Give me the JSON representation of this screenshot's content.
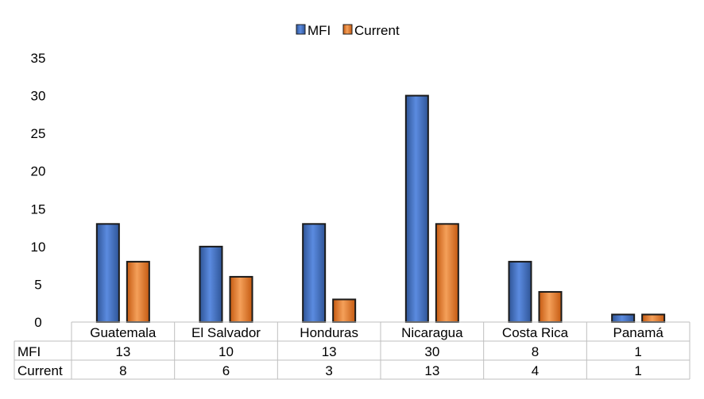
{
  "chart_data": {
    "type": "bar",
    "categories": [
      "Guatemala",
      "El Salvador",
      "Honduras",
      "Nicaragua",
      "Costa Rica",
      "Panamá"
    ],
    "series": [
      {
        "name": "MFI",
        "values": [
          13,
          10,
          13,
          30,
          8,
          1
        ],
        "color": "#4472C4"
      },
      {
        "name": "Current",
        "values": [
          8,
          6,
          3,
          13,
          4,
          1
        ],
        "color": "#ED7D31"
      }
    ],
    "ylim": [
      0,
      35
    ],
    "yticks": [
      0,
      5,
      10,
      15,
      20,
      25,
      30,
      35
    ],
    "legend": "top-center",
    "grid": false,
    "data_table": {
      "rows": [
        {
          "label": "MFI",
          "values": [
            "13",
            "10",
            "13",
            "30",
            "8",
            "1"
          ]
        },
        {
          "label": "Current",
          "values": [
            "8",
            "6",
            "3",
            "13",
            "4",
            "1"
          ]
        }
      ]
    }
  }
}
